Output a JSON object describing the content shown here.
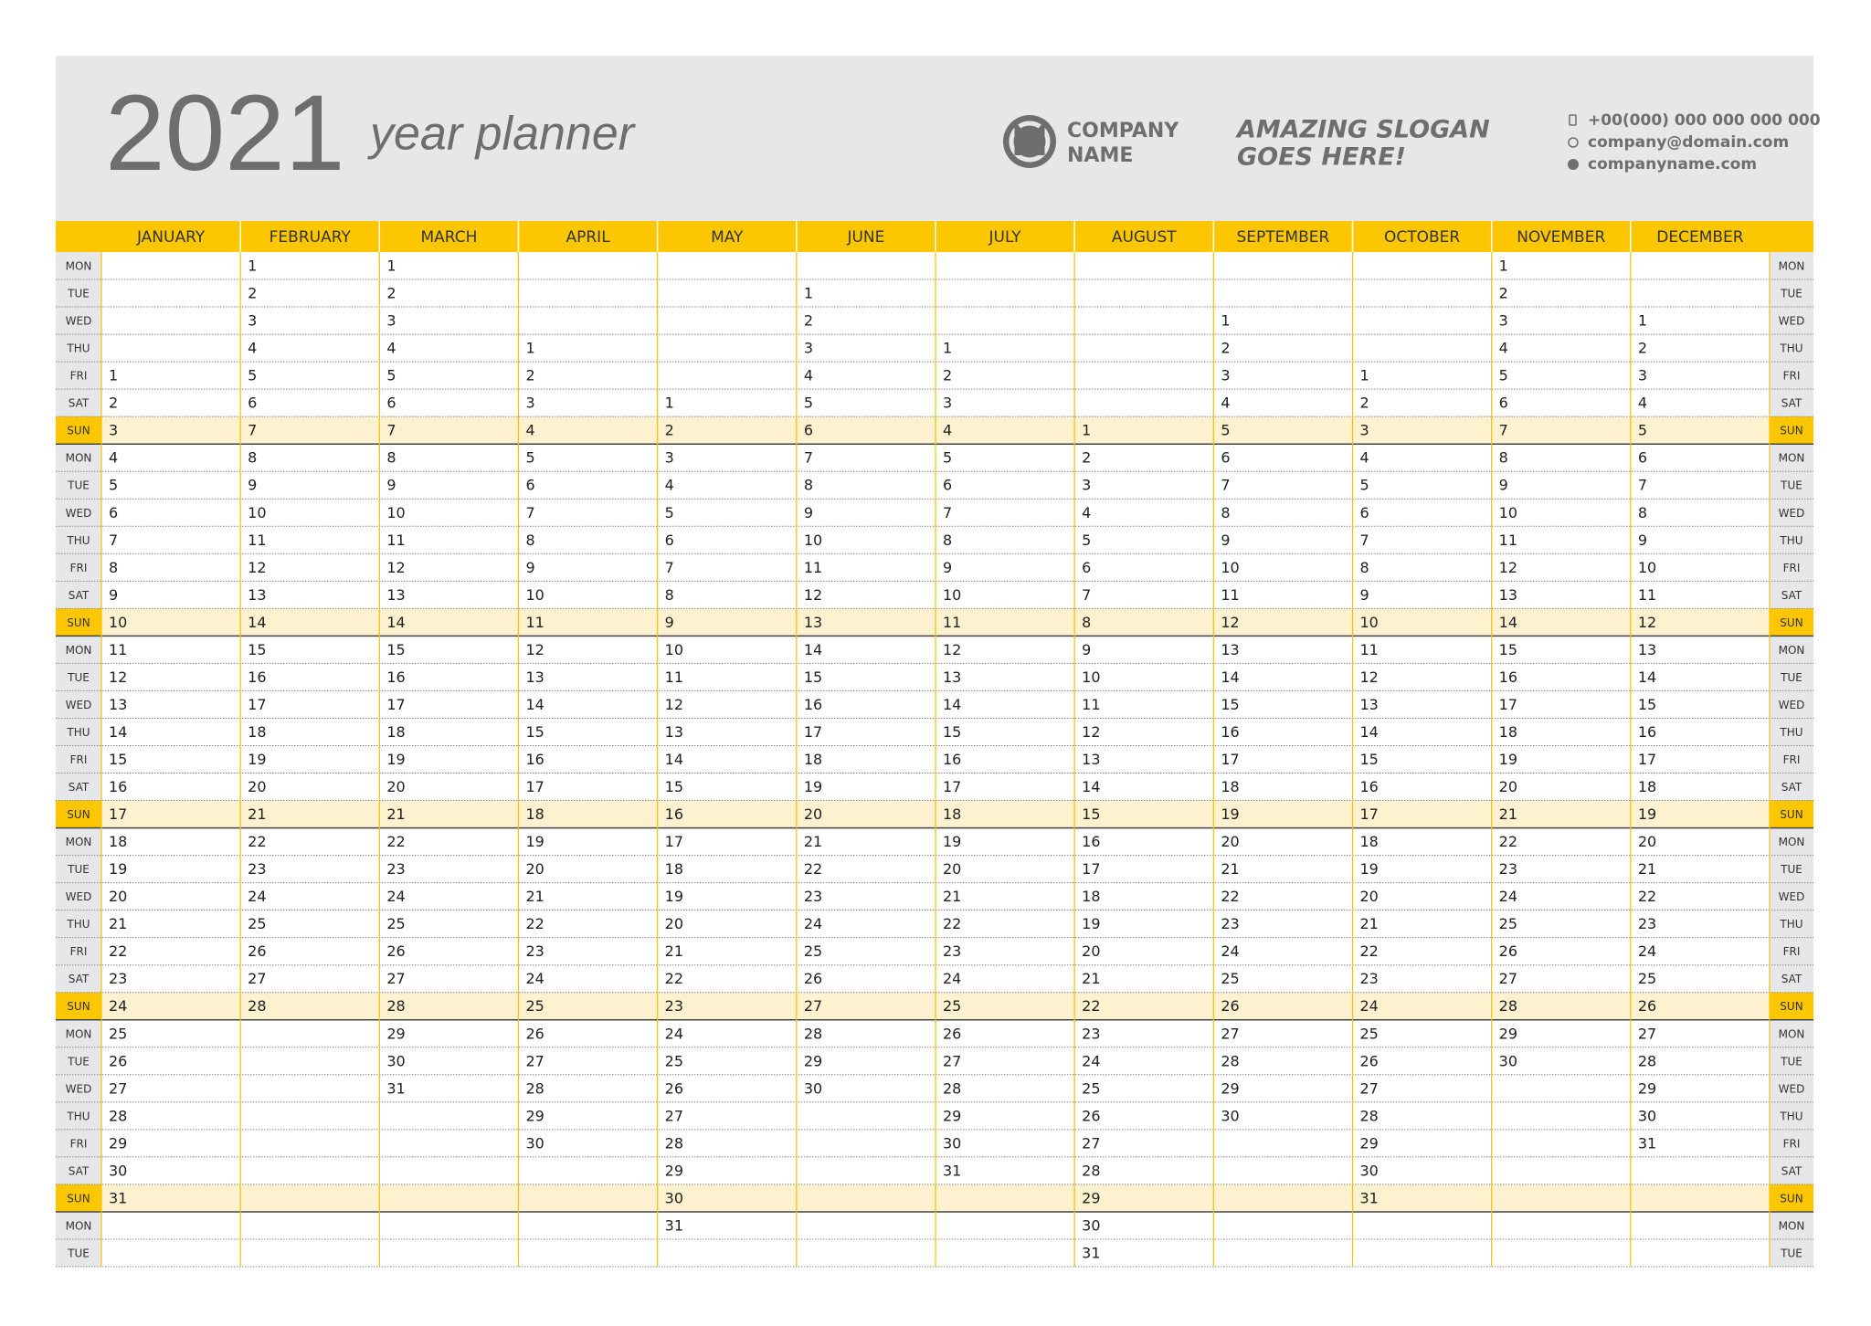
{
  "header": {
    "year": "2021",
    "subtitle": "year planner",
    "company": [
      "COMPANY",
      "NAME"
    ],
    "slogan": [
      "AMAZING SLOGAN",
      "GOES HERE!"
    ],
    "contacts": [
      "+00(000) 000 000 000 000",
      "company@domain.com",
      "companyname.com"
    ]
  },
  "weekdays": [
    "MON",
    "TUE",
    "WED",
    "THU",
    "FRI",
    "SAT",
    "SUN",
    "MON",
    "TUE",
    "WED",
    "THU",
    "FRI",
    "SAT",
    "SUN",
    "MON",
    "TUE",
    "WED",
    "THU",
    "FRI",
    "SAT",
    "SUN",
    "MON",
    "TUE",
    "WED",
    "THU",
    "FRI",
    "SAT",
    "SUN",
    "MON",
    "TUE",
    "WED",
    "THU",
    "FRI",
    "SAT",
    "SUN",
    "MON",
    "TUE"
  ],
  "months": [
    {
      "name": "JANUARY",
      "days": [
        null,
        null,
        null,
        null,
        1,
        2,
        3,
        4,
        5,
        6,
        7,
        8,
        9,
        10,
        11,
        12,
        13,
        14,
        15,
        16,
        17,
        18,
        19,
        20,
        21,
        22,
        23,
        24,
        25,
        26,
        27,
        28,
        29,
        30,
        31,
        null,
        null
      ]
    },
    {
      "name": "FEBRUARY",
      "days": [
        1,
        2,
        3,
        4,
        5,
        6,
        7,
        8,
        9,
        10,
        11,
        12,
        13,
        14,
        15,
        16,
        17,
        18,
        19,
        20,
        21,
        22,
        23,
        24,
        25,
        26,
        27,
        28,
        null,
        null,
        null,
        null,
        null,
        null,
        null,
        null,
        null
      ]
    },
    {
      "name": "MARCH",
      "days": [
        1,
        2,
        3,
        4,
        5,
        6,
        7,
        8,
        9,
        10,
        11,
        12,
        13,
        14,
        15,
        16,
        17,
        18,
        19,
        20,
        21,
        22,
        23,
        24,
        25,
        26,
        27,
        28,
        29,
        30,
        31,
        null,
        null,
        null,
        null,
        null,
        null
      ]
    },
    {
      "name": "APRIL",
      "days": [
        null,
        null,
        null,
        1,
        2,
        3,
        4,
        5,
        6,
        7,
        8,
        9,
        10,
        11,
        12,
        13,
        14,
        15,
        16,
        17,
        18,
        19,
        20,
        21,
        22,
        23,
        24,
        25,
        26,
        27,
        28,
        29,
        30,
        null,
        null,
        null,
        null
      ]
    },
    {
      "name": "MAY",
      "days": [
        null,
        null,
        null,
        null,
        null,
        1,
        2,
        3,
        4,
        5,
        6,
        7,
        8,
        9,
        10,
        11,
        12,
        13,
        14,
        15,
        16,
        17,
        18,
        19,
        20,
        21,
        22,
        23,
        24,
        25,
        26,
        27,
        28,
        29,
        30,
        31,
        null
      ]
    },
    {
      "name": "JUNE",
      "days": [
        null,
        1,
        2,
        3,
        4,
        5,
        6,
        7,
        8,
        9,
        10,
        11,
        12,
        13,
        14,
        15,
        16,
        17,
        18,
        19,
        20,
        21,
        22,
        23,
        24,
        25,
        26,
        27,
        28,
        29,
        30,
        null,
        null,
        null,
        null,
        null,
        null
      ]
    },
    {
      "name": "JULY",
      "days": [
        null,
        null,
        null,
        1,
        2,
        3,
        4,
        5,
        6,
        7,
        8,
        9,
        10,
        11,
        12,
        13,
        14,
        15,
        16,
        17,
        18,
        19,
        20,
        21,
        22,
        23,
        24,
        25,
        26,
        27,
        28,
        29,
        30,
        31,
        null,
        null,
        null
      ]
    },
    {
      "name": "AUGUST",
      "days": [
        null,
        null,
        null,
        null,
        null,
        null,
        1,
        2,
        3,
        4,
        5,
        6,
        7,
        8,
        9,
        10,
        11,
        12,
        13,
        14,
        15,
        16,
        17,
        18,
        19,
        20,
        21,
        22,
        23,
        24,
        25,
        26,
        27,
        28,
        29,
        30,
        31
      ]
    },
    {
      "name": "SEPTEMBER",
      "days": [
        null,
        null,
        1,
        2,
        3,
        4,
        5,
        6,
        7,
        8,
        9,
        10,
        11,
        12,
        13,
        14,
        15,
        16,
        17,
        18,
        19,
        20,
        21,
        22,
        23,
        24,
        25,
        26,
        27,
        28,
        29,
        30,
        null,
        null,
        null,
        null,
        null
      ]
    },
    {
      "name": "OCTOBER",
      "days": [
        null,
        null,
        null,
        null,
        1,
        2,
        3,
        4,
        5,
        6,
        7,
        8,
        9,
        10,
        11,
        12,
        13,
        14,
        15,
        16,
        17,
        18,
        19,
        20,
        21,
        22,
        23,
        24,
        25,
        26,
        27,
        28,
        29,
        30,
        31,
        null,
        null
      ]
    },
    {
      "name": "NOVEMBER",
      "days": [
        1,
        2,
        3,
        4,
        5,
        6,
        7,
        8,
        9,
        10,
        11,
        12,
        13,
        14,
        15,
        16,
        17,
        18,
        19,
        20,
        21,
        22,
        23,
        24,
        25,
        26,
        27,
        28,
        29,
        30,
        null,
        null,
        null,
        null,
        null,
        null,
        null
      ]
    },
    {
      "name": "DECEMBER",
      "days": [
        null,
        null,
        1,
        2,
        3,
        4,
        5,
        6,
        7,
        8,
        9,
        10,
        11,
        12,
        13,
        14,
        15,
        16,
        17,
        18,
        19,
        20,
        21,
        22,
        23,
        24,
        25,
        26,
        27,
        28,
        29,
        30,
        31,
        null,
        null,
        null,
        null
      ]
    }
  ]
}
